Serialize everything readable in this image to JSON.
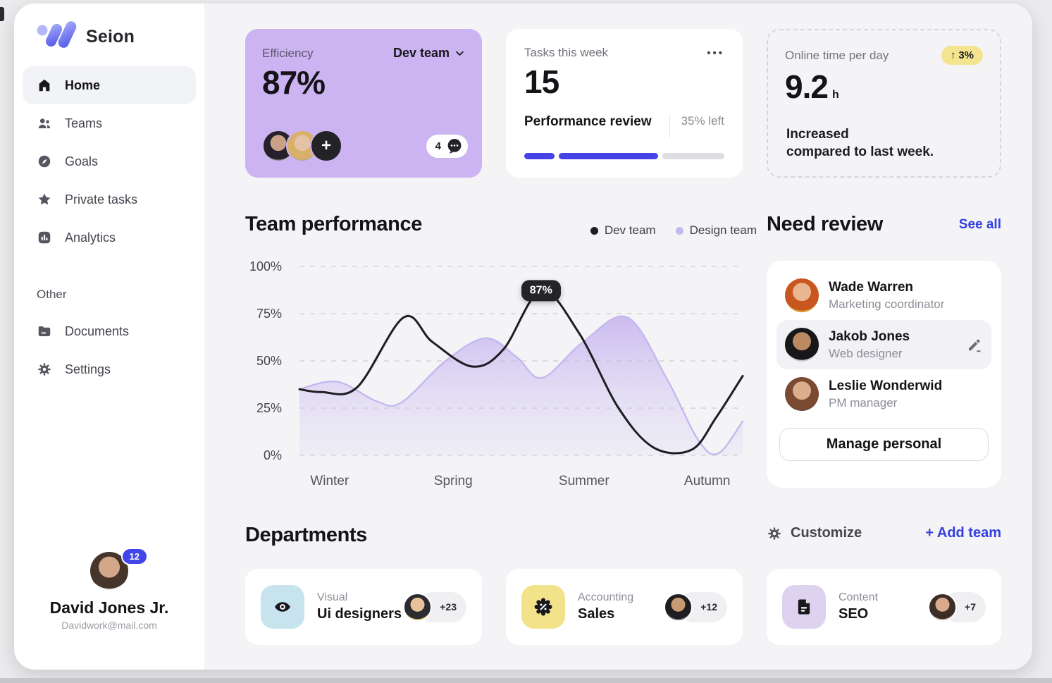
{
  "sidebar": {
    "logo_text": "Seion",
    "nav": [
      {
        "label": "Home",
        "active": true
      },
      {
        "label": "Teams",
        "active": false
      },
      {
        "label": "Goals",
        "active": false
      },
      {
        "label": "Private tasks",
        "active": false
      },
      {
        "label": "Analytics",
        "active": false
      }
    ],
    "other_label": "Other",
    "other_nav": [
      {
        "label": "Documents"
      },
      {
        "label": "Settings"
      }
    ],
    "user": {
      "name": "David Jones Jr.",
      "email": "Davidwork@mail.com",
      "badge": "12"
    }
  },
  "summary_cards": {
    "efficiency": {
      "label": "Efficiency",
      "value": "87%",
      "team": "Dev team",
      "chat_count": "4",
      "add_label": "+"
    },
    "tasks": {
      "label": "Tasks this week",
      "value": "15",
      "menu": "•••",
      "task_name": "Performance review",
      "remaining": "35% left"
    },
    "online": {
      "label": "Online time per day",
      "value": "9.2",
      "unit": "h",
      "delta_arrow": "↑",
      "delta": "3%",
      "note_line1": "Increased",
      "note_line2": "compared to last week."
    }
  },
  "chart_data": {
    "type": "area",
    "title": "Team performance",
    "x_categories": [
      "Winter",
      "Spring",
      "Summer",
      "Autumn"
    ],
    "x_positions": [
      0.068,
      0.347,
      0.642,
      0.92
    ],
    "y_ticks": [
      "100%",
      "75%",
      "50%",
      "25%",
      "0%"
    ],
    "ylim": [
      0,
      100
    ],
    "grid": "dashed-horizontal",
    "legend_position": "top-right",
    "legend": [
      {
        "name": "Dev team",
        "color": "#1d1d22"
      },
      {
        "name": "Design team",
        "color": "#c6b7f0"
      }
    ],
    "annotation": {
      "label": "87%",
      "series": "Dev team",
      "x": 0.545,
      "y": 87
    },
    "series": [
      {
        "name": "Design team",
        "type": "area",
        "color": "#c6b7f0",
        "points": [
          [
            0,
            35
          ],
          [
            0.085,
            39
          ],
          [
            0.175,
            28.5
          ],
          [
            0.23,
            28
          ],
          [
            0.33,
            50
          ],
          [
            0.42,
            62
          ],
          [
            0.49,
            52
          ],
          [
            0.548,
            41
          ],
          [
            0.64,
            60
          ],
          [
            0.74,
            73
          ],
          [
            0.83,
            40
          ],
          [
            0.9,
            8
          ],
          [
            0.945,
            1
          ],
          [
            1,
            18
          ]
        ]
      },
      {
        "name": "Dev team",
        "type": "line",
        "color": "#1d1d22",
        "points": [
          [
            0,
            35
          ],
          [
            0.05,
            33.5
          ],
          [
            0.13,
            36
          ],
          [
            0.235,
            73
          ],
          [
            0.3,
            60
          ],
          [
            0.39,
            47
          ],
          [
            0.46,
            56
          ],
          [
            0.545,
            87
          ],
          [
            0.63,
            65
          ],
          [
            0.72,
            25
          ],
          [
            0.8,
            4
          ],
          [
            0.885,
            3
          ],
          [
            0.94,
            20
          ],
          [
            1,
            42
          ]
        ]
      }
    ]
  },
  "need_review": {
    "title": "Need review",
    "see_all": "See all",
    "people": [
      {
        "name": "Wade Warren",
        "role": "Marketing coordinator"
      },
      {
        "name": "Jakob Jones",
        "role": "Web designer"
      },
      {
        "name": "Leslie Wonderwid",
        "role": "PM manager"
      }
    ],
    "manage_button": "Manage personal"
  },
  "departments": {
    "title": "Departments",
    "customize": "Customize",
    "add_team": "+ Add team",
    "cards": [
      {
        "category": "Visual",
        "team": "Ui designers",
        "extra": "+23",
        "icon": "eye-icon",
        "tile_color": "#c7e3ee"
      },
      {
        "category": "Accounting",
        "team": "Sales",
        "extra": "+12",
        "icon": "percent-badge-icon",
        "tile_color": "#f2e38b"
      },
      {
        "category": "Content",
        "team": "SEO",
        "extra": "+7",
        "icon": "document-icon",
        "tile_color": "#ddd3f1"
      }
    ]
  },
  "colors": {
    "accent_blue": "#3340df",
    "progress_blue": "#4543e6",
    "badge_blue": "#4046e9",
    "efficiency_card_purple": "#ccb3f1",
    "delta_pill_yellow": "#f5e48f",
    "chart_line_dark": "#1d1d22",
    "chart_area_purple": "#c6b7f0",
    "main_background": "#f4f4f6"
  }
}
